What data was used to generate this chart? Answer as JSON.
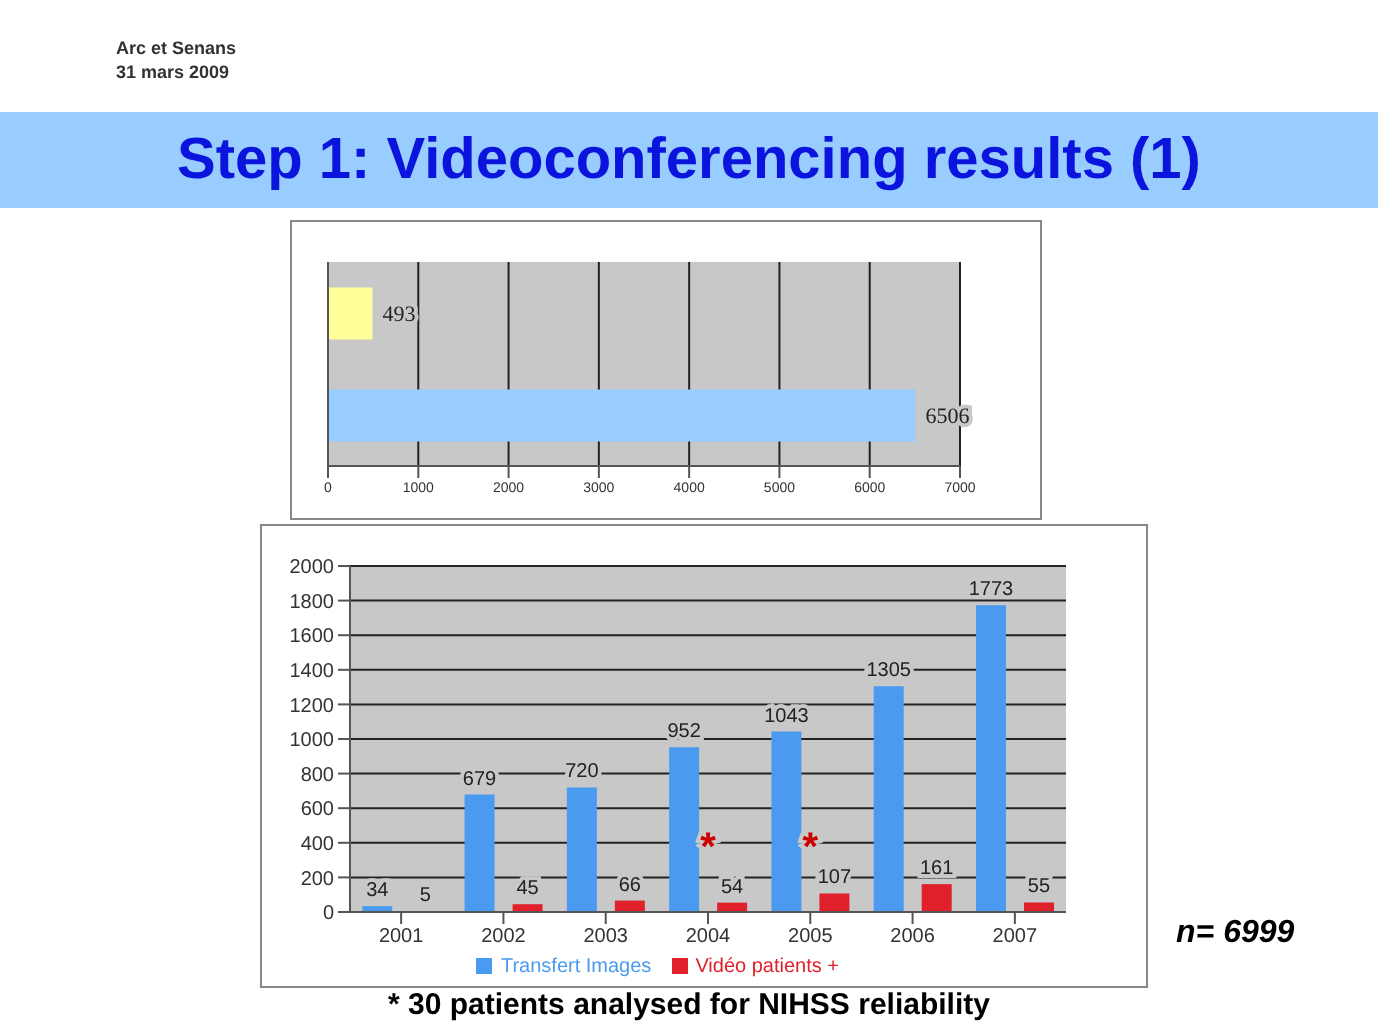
{
  "chart_data": [
    {
      "type": "bar",
      "orientation": "horizontal",
      "title": "Step 1: Videoconferencing results (1)",
      "annotations": [
        "Arc et Senans",
        "31 mars 2009"
      ],
      "categories": [
        null,
        null
      ],
      "values": [
        493,
        6506
      ],
      "colors": [
        "#ffff99",
        "#99ccff"
      ],
      "xlim": [
        0,
        7000
      ],
      "xticks": [
        0,
        1000,
        2000,
        3000,
        4000,
        5000,
        6000,
        7000
      ],
      "grid": "x",
      "tick_labels": "x",
      "data_labels": true
    },
    {
      "type": "bar",
      "categories": [
        "2001",
        "2002",
        "2003",
        "2004",
        "2005",
        "2006",
        "2007"
      ],
      "series": [
        {
          "name": "Transfert Images",
          "color": "#4a9af0",
          "values": [
            34,
            679,
            720,
            952,
            1043,
            1305,
            1773
          ]
        },
        {
          "name": "Vidéo patients +",
          "color": "#e0202a",
          "values": [
            5,
            45,
            66,
            54,
            107,
            161,
            55
          ]
        }
      ],
      "ylim": [
        0,
        2000
      ],
      "yticks": [
        0,
        200,
        400,
        600,
        800,
        1000,
        1200,
        1400,
        1600,
        1800,
        2000
      ],
      "grid": "y",
      "legend": "bottom",
      "data_labels": true,
      "annotations": [
        {
          "text": "*",
          "x": "2004",
          "y": 380
        },
        {
          "text": "*",
          "x": "2005",
          "y": 380
        },
        "n= 6999",
        "* 30 patients analysed for NIHSS reliability"
      ]
    }
  ]
}
